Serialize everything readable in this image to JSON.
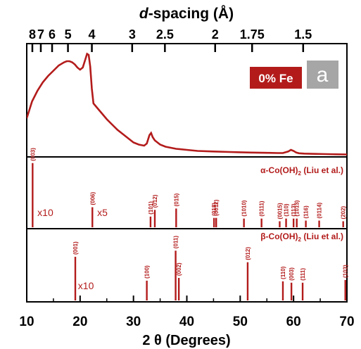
{
  "chart_data": {
    "type": "line",
    "title": "d-spacing (Å)",
    "title_prefix": "d",
    "title_rest": "-spacing (Å)",
    "xlabel": "2 θ (Degrees)",
    "xlim": [
      10,
      70
    ],
    "x_ticks": [
      10,
      20,
      30,
      40,
      50,
      60,
      70
    ],
    "top_axis_ticks": [
      {
        "label": "8",
        "d": 8
      },
      {
        "label": "7",
        "d": 7
      },
      {
        "label": "6",
        "d": 6
      },
      {
        "label": "5",
        "d": 5
      },
      {
        "label": "4",
        "d": 4
      },
      {
        "label": "3",
        "d": 3
      },
      {
        "label": "2.5",
        "d": 2.5
      },
      {
        "label": "2",
        "d": 2
      },
      {
        "label": "1.75",
        "d": 1.75
      },
      {
        "label": "1.5",
        "d": 1.5
      }
    ],
    "panels": [
      {
        "name": "pattern",
        "legend": "0% Fe",
        "panel_label": "a",
        "ylim": [
          0,
          100
        ],
        "series": [
          {
            "x": [
              10,
              10.5,
              11,
              12,
              13,
              14,
              15,
              16,
              17,
              17.5,
              18,
              18.5,
              19,
              19.5,
              20,
              20.5,
              21,
              21.3,
              21.6,
              21.9,
              22.2,
              22.5,
              23,
              23.5,
              24,
              25,
              26,
              27,
              28,
              29,
              30,
              31,
              32,
              32.5,
              33,
              33.3,
              33.6,
              34,
              34.5,
              35,
              36,
              38,
              40,
              42,
              45,
              48,
              50,
              52,
              55,
              57,
              58,
              59,
              59.5,
              60,
              60.5,
              61,
              62,
              64,
              66,
              68,
              70
            ],
            "y": [
              36,
              44,
              52,
              62,
              70,
              76,
              81,
              86,
              89,
              90,
              90,
              89,
              87,
              84,
              82,
              84,
              92,
              97,
              96,
              85,
              64,
              50,
              47,
              44,
              41,
              35,
              30,
              25,
              21,
              17,
              13,
              11,
              10,
              12,
              20,
              22,
              18,
              15,
              13,
              11,
              9,
              7,
              6,
              5,
              4.5,
              4,
              3.7,
              3.5,
              3.2,
              3,
              3,
              4.5,
              6,
              5,
              3.5,
              2.8,
              2.5,
              2.2,
              2,
              1.8,
              1.6
            ]
          }
        ]
      },
      {
        "name": "alpha-ref",
        "legend_prefix": "α-Co(OH)",
        "legend_sub": "2",
        "legend_suffix": " (Liu et al.)",
        "ylim": [
          0,
          100
        ],
        "peaks": [
          {
            "x": 11.1,
            "h": 96,
            "label": "(003)"
          },
          {
            "x": 22.3,
            "h": 30,
            "label": "(006)"
          },
          {
            "x": 33.2,
            "h": 16,
            "label": "(101)"
          },
          {
            "x": 34.0,
            "h": 26,
            "label": "(012)"
          },
          {
            "x": 38.0,
            "h": 28,
            "label": "(015)"
          },
          {
            "x": 45.1,
            "h": 14,
            "label": "(018)"
          },
          {
            "x": 45.5,
            "h": 14,
            "label": "(0012)"
          },
          {
            "x": 50.7,
            "h": 13,
            "label": "(1010)"
          },
          {
            "x": 54.0,
            "h": 13,
            "label": "(0111)"
          },
          {
            "x": 57.4,
            "h": 9,
            "label": "(0015)"
          },
          {
            "x": 58.6,
            "h": 13,
            "label": "(110)"
          },
          {
            "x": 60.0,
            "h": 13,
            "label": "(113)"
          },
          {
            "x": 60.6,
            "h": 13,
            "label": "(1013)"
          },
          {
            "x": 62.3,
            "h": 10,
            "label": "(116)"
          },
          {
            "x": 64.8,
            "h": 10,
            "label": "(0114)"
          },
          {
            "x": 69.3,
            "h": 9,
            "label": "(202)"
          }
        ],
        "multipliers": [
          {
            "text": "x10",
            "x": 12.0
          },
          {
            "text": "x5",
            "x": 23.2
          }
        ]
      },
      {
        "name": "beta-ref",
        "legend_prefix": "β-Co(OH)",
        "legend_sub": "2",
        "legend_suffix": " (Liu et al.)",
        "ylim": [
          0,
          100
        ],
        "peaks": [
          {
            "x": 19.1,
            "h": 64,
            "label": "(001)"
          },
          {
            "x": 32.5,
            "h": 29,
            "label": "(100)"
          },
          {
            "x": 37.9,
            "h": 73,
            "label": "(011)"
          },
          {
            "x": 38.5,
            "h": 33,
            "label": "(002)"
          },
          {
            "x": 51.4,
            "h": 56,
            "label": "(012)"
          },
          {
            "x": 58.0,
            "h": 28,
            "label": "(110)"
          },
          {
            "x": 59.6,
            "h": 26,
            "label": "(003)"
          },
          {
            "x": 61.7,
            "h": 26,
            "label": "(111)"
          },
          {
            "x": 69.7,
            "h": 30,
            "label": "(103)"
          }
        ],
        "multipliers": [
          {
            "text": "x10",
            "x": 19.6
          }
        ]
      }
    ],
    "colors": {
      "line": "#b31b1b",
      "legend_bg": "#b31b1b",
      "panel_label_bg": "#a6a6a6"
    }
  }
}
